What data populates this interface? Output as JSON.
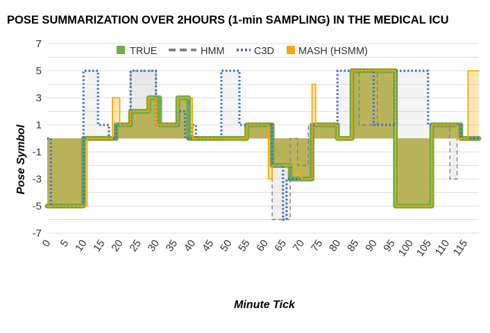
{
  "chart_data": {
    "type": "line",
    "title": "POSE SUMMARIZATION OVER 2HOURS (1-min SAMPLING) IN THE MEDICAL ICU",
    "xlabel": "Minute Tick",
    "ylabel": "Pose Symbol",
    "xlim": [
      0,
      119
    ],
    "ylim": [
      -7,
      7
    ],
    "x_ticks": [
      0,
      5,
      10,
      15,
      20,
      25,
      30,
      35,
      40,
      45,
      50,
      55,
      60,
      65,
      70,
      75,
      80,
      85,
      90,
      95,
      100,
      105,
      110,
      115
    ],
    "y_ticks": [
      7,
      5,
      3,
      1,
      -1,
      -3,
      -5,
      -7
    ],
    "y_tick_labels": [
      "7",
      "5",
      "3",
      "1",
      "-1",
      "-3",
      "-5",
      "-7"
    ],
    "grid": true,
    "legend_position": "top",
    "series": [
      {
        "name": "TRUE",
        "color": "#70AD47",
        "style": "solid-thick",
        "steps": [
          [
            0,
            -5
          ],
          [
            10,
            0
          ],
          [
            19,
            1
          ],
          [
            23,
            2
          ],
          [
            28,
            3
          ],
          [
            31,
            1
          ],
          [
            36,
            3
          ],
          [
            39,
            0
          ],
          [
            55,
            1
          ],
          [
            62,
            -2
          ],
          [
            67,
            -3
          ],
          [
            73,
            1
          ],
          [
            80,
            0
          ],
          [
            84,
            5
          ],
          [
            96,
            -5
          ],
          [
            106,
            1
          ],
          [
            114,
            0
          ],
          [
            119,
            0
          ]
        ]
      },
      {
        "name": "HMM",
        "color": "#808080",
        "style": "dashed",
        "steps": [
          [
            0,
            -5
          ],
          [
            10,
            0
          ],
          [
            19,
            1
          ],
          [
            23,
            5
          ],
          [
            30,
            1
          ],
          [
            36,
            3
          ],
          [
            39,
            0
          ],
          [
            55,
            1
          ],
          [
            62,
            -6
          ],
          [
            67,
            0
          ],
          [
            69,
            -2
          ],
          [
            72,
            1
          ],
          [
            80,
            0
          ],
          [
            84,
            5
          ],
          [
            86,
            1
          ],
          [
            91,
            5
          ],
          [
            96,
            -5
          ],
          [
            106,
            1
          ],
          [
            111,
            -3
          ],
          [
            113,
            1
          ],
          [
            114,
            0
          ],
          [
            119,
            0
          ]
        ]
      },
      {
        "name": "C3D",
        "color": "#4472C4",
        "style": "dotted",
        "steps": [
          [
            0,
            0
          ],
          [
            1,
            -5
          ],
          [
            10,
            5
          ],
          [
            14,
            1
          ],
          [
            17,
            0
          ],
          [
            19,
            1
          ],
          [
            23,
            5
          ],
          [
            30,
            1
          ],
          [
            36,
            2
          ],
          [
            38,
            0
          ],
          [
            40,
            1
          ],
          [
            41,
            0
          ],
          [
            48,
            5
          ],
          [
            53,
            1
          ],
          [
            55,
            1
          ],
          [
            62,
            -2
          ],
          [
            65,
            -6
          ],
          [
            66,
            -3
          ],
          [
            73,
            1
          ],
          [
            80,
            5
          ],
          [
            84,
            5
          ],
          [
            90,
            1
          ],
          [
            96,
            5
          ],
          [
            105,
            1
          ],
          [
            114,
            0
          ],
          [
            119,
            0
          ]
        ]
      },
      {
        "name": "MASH (HSMM)",
        "color": "#FFA500",
        "style": "solid-thin",
        "steps": [
          [
            0,
            -5
          ],
          [
            11,
            0
          ],
          [
            18,
            3
          ],
          [
            20,
            1
          ],
          [
            23,
            2
          ],
          [
            28,
            3
          ],
          [
            30,
            1
          ],
          [
            36,
            3
          ],
          [
            40,
            0
          ],
          [
            55,
            1
          ],
          [
            61,
            -3
          ],
          [
            62,
            -2
          ],
          [
            68,
            -2.5
          ],
          [
            70,
            -3
          ],
          [
            73,
            4
          ],
          [
            74,
            1
          ],
          [
            80,
            0
          ],
          [
            84,
            5
          ],
          [
            96,
            -5
          ],
          [
            106,
            1
          ],
          [
            113,
            0
          ],
          [
            116,
            5
          ],
          [
            119,
            5
          ]
        ]
      }
    ]
  }
}
